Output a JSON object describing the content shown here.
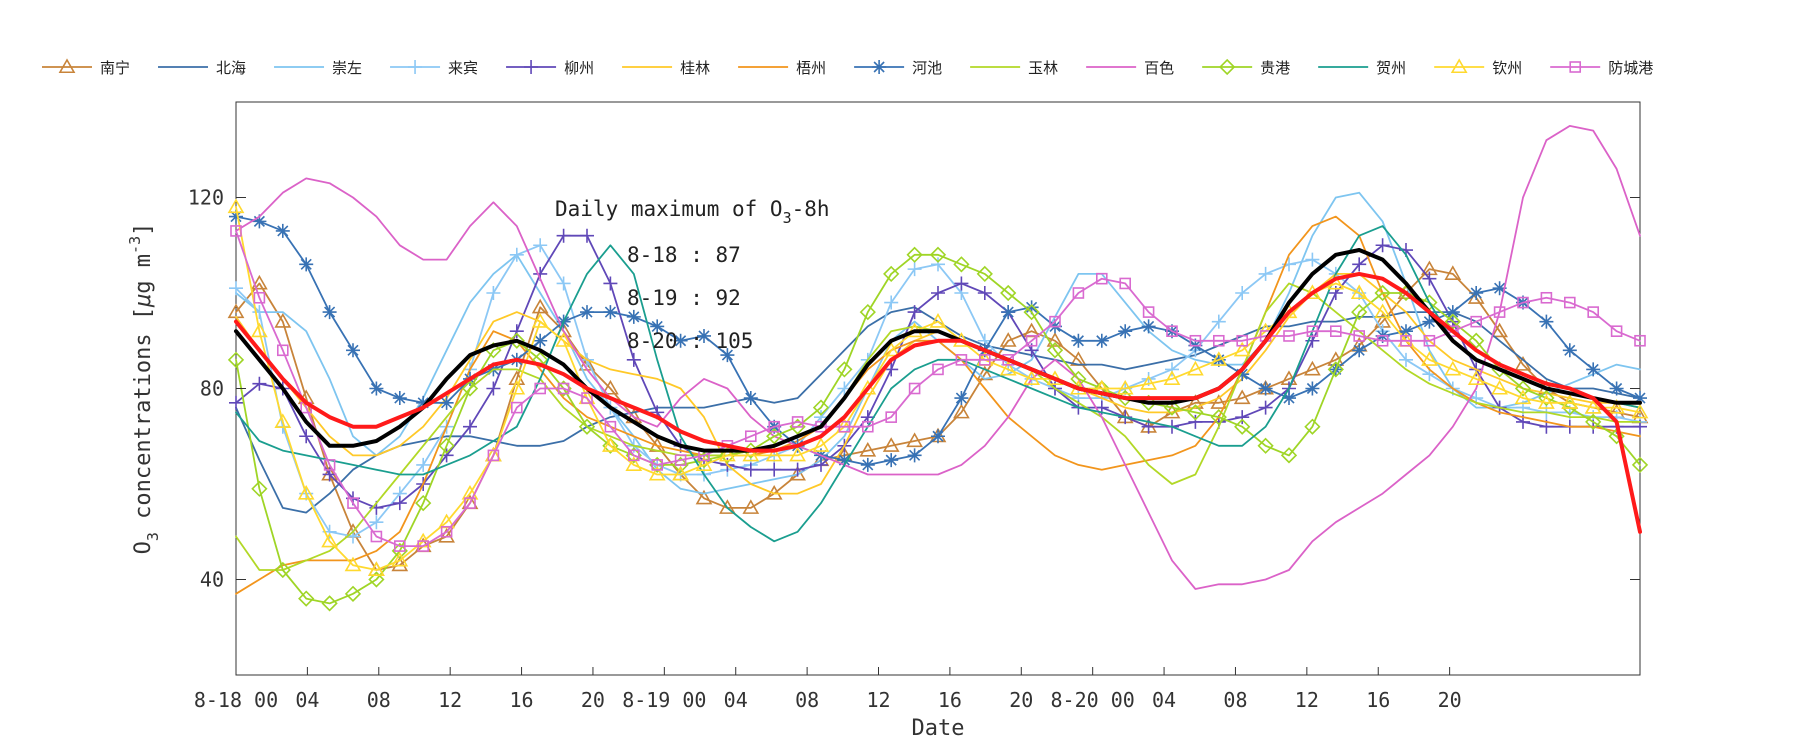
{
  "chart_data": {
    "type": "line",
    "xlabel": "Date",
    "ylabel": "O₃ concentrations [μg m⁻³]",
    "ylabel_parts": {
      "main": "O",
      "sub": "3",
      "middle": " concentrations [",
      "mu": "μ",
      "unit": "g m",
      "sup": "-3",
      "end": "]"
    },
    "ylim": [
      20,
      140
    ],
    "yticks": [
      40,
      80,
      120
    ],
    "xlim": [
      0,
      59
    ],
    "xticks": [
      {
        "x": 0,
        "label": "8-18 00"
      },
      {
        "x": 3,
        "label": "04"
      },
      {
        "x": 6,
        "label": "08"
      },
      {
        "x": 9,
        "label": "12"
      },
      {
        "x": 12,
        "label": "16"
      },
      {
        "x": 15,
        "label": "20"
      },
      {
        "x": 18,
        "label": "8-19 00"
      },
      {
        "x": 21,
        "label": "04"
      },
      {
        "x": 24,
        "label": "08"
      },
      {
        "x": 27,
        "label": "12"
      },
      {
        "x": 30,
        "label": "16"
      },
      {
        "x": 33,
        "label": "20"
      },
      {
        "x": 36,
        "label": "8-20 00"
      },
      {
        "x": 39,
        "label": "04"
      },
      {
        "x": 42,
        "label": "08"
      },
      {
        "x": 45,
        "label": "12"
      },
      {
        "x": 48,
        "label": "16"
      },
      {
        "x": 51,
        "label": "20"
      }
    ],
    "grid": false,
    "legend_position": "top",
    "annotation": {
      "title_main": "Daily maximum of O",
      "title_sub": "3",
      "title_end": "-8h",
      "lines": [
        "8-18 : 87",
        "8-19 : 92",
        "8-20 : 105"
      ]
    },
    "series": [
      {
        "name": "南宁",
        "color": "#c8843a",
        "marker": "triangle",
        "values": [
          96,
          102,
          94,
          78,
          62,
          50,
          42,
          43,
          47,
          49,
          56,
          66,
          82,
          97,
          92,
          85,
          80,
          74,
          68,
          62,
          57,
          55,
          55,
          58,
          62,
          65,
          66,
          67,
          68,
          69,
          70,
          75,
          83,
          90,
          92,
          90,
          86,
          80,
          74,
          72,
          75,
          77,
          77,
          78,
          80,
          82,
          84,
          86,
          89,
          94,
          100,
          105,
          104,
          99,
          92,
          85,
          80,
          77,
          76,
          75,
          74
        ]
      },
      {
        "name": "北海",
        "color": "#3b6fa8",
        "marker": "none",
        "values": [
          76,
          65,
          55,
          54,
          58,
          63,
          66,
          68,
          69,
          70,
          70,
          69,
          68,
          68,
          69,
          72,
          74,
          75,
          76,
          76,
          76,
          77,
          78,
          77,
          78,
          83,
          88,
          93,
          96,
          97,
          94,
          91,
          89,
          88,
          87,
          86,
          85,
          85,
          84,
          85,
          86,
          87,
          89,
          91,
          93,
          93,
          94,
          94,
          95,
          95,
          96,
          96,
          96,
          94,
          90,
          86,
          82,
          80,
          80,
          79,
          78
        ]
      },
      {
        "name": "崇左",
        "color": "#7ec5f0",
        "marker": "none",
        "values": [
          100,
          96,
          96,
          92,
          82,
          70,
          66,
          70,
          78,
          88,
          98,
          104,
          108,
          100,
          92,
          82,
          76,
          70,
          63,
          59,
          58,
          59,
          60,
          61,
          62,
          65,
          70,
          80,
          90,
          94,
          90,
          86,
          82,
          83,
          86,
          95,
          104,
          104,
          98,
          92,
          88,
          86,
          85,
          85,
          90,
          100,
          112,
          120,
          121,
          115,
          102,
          88,
          80,
          76,
          76,
          77,
          79,
          81,
          83,
          85,
          84
        ]
      },
      {
        "name": "来宾",
        "color": "#8cc8f5",
        "marker": "plus",
        "values": [
          101,
          96,
          72,
          58,
          50,
          49,
          52,
          58,
          64,
          72,
          84,
          100,
          108,
          110,
          102,
          86,
          76,
          68,
          64,
          62,
          62,
          63,
          64,
          66,
          68,
          74,
          80,
          86,
          98,
          105,
          106,
          100,
          90,
          85,
          82,
          80,
          78,
          78,
          80,
          82,
          84,
          88,
          94,
          100,
          104,
          106,
          107,
          104,
          100,
          92,
          86,
          83,
          80,
          78,
          76,
          76,
          75,
          75,
          74,
          74,
          73
        ]
      },
      {
        "name": "柳州",
        "color": "#6048b8",
        "marker": "plus",
        "values": [
          77,
          81,
          80,
          70,
          62,
          57,
          55,
          56,
          60,
          66,
          72,
          80,
          92,
          104,
          112,
          112,
          102,
          86,
          75,
          68,
          65,
          64,
          63,
          63,
          63,
          64,
          68,
          74,
          84,
          96,
          100,
          102,
          100,
          96,
          88,
          80,
          76,
          76,
          74,
          72,
          72,
          73,
          73,
          74,
          76,
          80,
          90,
          100,
          106,
          110,
          109,
          103,
          94,
          84,
          76,
          73,
          72,
          72,
          72,
          72,
          72
        ]
      },
      {
        "name": "桂林",
        "color": "#ffc928",
        "marker": "none",
        "values": [
          95,
          88,
          82,
          76,
          70,
          66,
          66,
          68,
          72,
          78,
          86,
          94,
          96,
          94,
          90,
          86,
          84,
          83,
          82,
          80,
          74,
          64,
          60,
          58,
          58,
          60,
          68,
          78,
          86,
          90,
          92,
          90,
          88,
          86,
          84,
          82,
          80,
          78,
          76,
          75,
          75,
          76,
          78,
          82,
          88,
          95,
          100,
          104,
          104,
          100,
          96,
          90,
          86,
          84,
          82,
          80,
          79,
          78,
          77,
          77,
          76
        ]
      },
      {
        "name": "梧州",
        "color": "#f2951c",
        "marker": "none",
        "values": [
          37,
          40,
          43,
          44,
          44,
          44,
          46,
          50,
          60,
          72,
          84,
          92,
          90,
          84,
          78,
          74,
          72,
          70,
          68,
          67,
          66,
          66,
          66,
          67,
          69,
          72,
          78,
          84,
          88,
          90,
          90,
          86,
          80,
          74,
          70,
          66,
          64,
          63,
          64,
          65,
          66,
          68,
          74,
          84,
          96,
          108,
          114,
          116,
          112,
          100,
          90,
          84,
          80,
          77,
          75,
          74,
          73,
          72,
          72,
          71,
          70
        ]
      },
      {
        "name": "河池",
        "color": "#3872b4",
        "marker": "star",
        "values": [
          116,
          115,
          113,
          106,
          96,
          88,
          80,
          78,
          77,
          77,
          82,
          84,
          86,
          90,
          94,
          96,
          96,
          95,
          93,
          90,
          91,
          87,
          78,
          72,
          68,
          66,
          65,
          64,
          65,
          66,
          70,
          78,
          88,
          96,
          97,
          93,
          90,
          90,
          92,
          93,
          92,
          89,
          86,
          83,
          80,
          78,
          80,
          84,
          88,
          91,
          92,
          94,
          96,
          100,
          101,
          98,
          94,
          88,
          84,
          80,
          78
        ]
      },
      {
        "name": "玉林",
        "color": "#b2d826",
        "marker": "none",
        "values": [
          49,
          42,
          42,
          44,
          46,
          50,
          56,
          62,
          68,
          74,
          80,
          84,
          84,
          82,
          76,
          72,
          70,
          68,
          67,
          66,
          66,
          66,
          67,
          68,
          70,
          72,
          78,
          86,
          92,
          93,
          92,
          90,
          88,
          86,
          84,
          80,
          77,
          74,
          70,
          64,
          60,
          62,
          72,
          84,
          96,
          102,
          100,
          96,
          92,
          88,
          84,
          81,
          79,
          77,
          76,
          75,
          75,
          74,
          74,
          73,
          73
        ]
      },
      {
        "name": "百色",
        "color": "#db62c8",
        "marker": "none",
        "values": [
          113,
          116,
          121,
          124,
          123,
          120,
          116,
          110,
          107,
          107,
          114,
          119,
          114,
          103,
          92,
          84,
          78,
          74,
          72,
          78,
          82,
          80,
          74,
          70,
          68,
          66,
          64,
          62,
          62,
          62,
          62,
          64,
          68,
          74,
          82,
          86,
          82,
          74,
          64,
          54,
          44,
          38,
          39,
          39,
          40,
          42,
          48,
          52,
          55,
          58,
          62,
          66,
          72,
          80,
          96,
          120,
          132,
          135,
          134,
          126,
          112
        ]
      },
      {
        "name": "贵港",
        "color": "#9fd526",
        "marker": "diamond",
        "values": [
          86,
          59,
          42,
          36,
          35,
          37,
          40,
          46,
          56,
          68,
          80,
          88,
          90,
          86,
          80,
          72,
          68,
          66,
          64,
          64,
          65,
          66,
          67,
          70,
          72,
          76,
          84,
          96,
          104,
          108,
          108,
          106,
          104,
          100,
          96,
          88,
          82,
          80,
          78,
          77,
          76,
          75,
          74,
          72,
          68,
          66,
          72,
          84,
          96,
          100,
          100,
          98,
          94,
          90,
          84,
          80,
          78,
          76,
          73,
          70,
          64
        ]
      },
      {
        "name": "贺州",
        "color": "#1a9e8f",
        "marker": "none",
        "values": [
          75,
          69,
          67,
          66,
          65,
          64,
          63,
          62,
          62,
          64,
          66,
          69,
          72,
          82,
          94,
          104,
          110,
          104,
          86,
          70,
          62,
          55,
          51,
          48,
          50,
          56,
          64,
          72,
          80,
          84,
          86,
          86,
          84,
          82,
          80,
          78,
          76,
          75,
          74,
          73,
          72,
          70,
          68,
          68,
          72,
          80,
          92,
          104,
          112,
          114,
          108,
          98,
          90,
          86,
          84,
          82,
          80,
          79,
          78,
          77,
          76
        ]
      },
      {
        "name": "钦州",
        "color": "#ffd92e",
        "marker": "triangle",
        "values": [
          118,
          92,
          73,
          58,
          48,
          43,
          42,
          44,
          48,
          52,
          58,
          66,
          80,
          94,
          90,
          78,
          68,
          64,
          62,
          62,
          64,
          66,
          66,
          66,
          66,
          68,
          72,
          80,
          88,
          92,
          94,
          90,
          86,
          84,
          82,
          82,
          80,
          80,
          80,
          81,
          82,
          84,
          86,
          88,
          92,
          96,
          100,
          102,
          100,
          96,
          90,
          86,
          84,
          82,
          80,
          78,
          77,
          77,
          76,
          76,
          75
        ]
      },
      {
        "name": "防城港",
        "color": "#d96ad0",
        "marker": "square",
        "values": [
          113,
          99,
          88,
          76,
          64,
          56,
          49,
          47,
          47,
          50,
          56,
          66,
          76,
          80,
          80,
          78,
          72,
          66,
          64,
          65,
          66,
          68,
          70,
          72,
          73,
          72,
          72,
          72,
          74,
          80,
          84,
          86,
          86,
          86,
          90,
          94,
          100,
          103,
          102,
          96,
          92,
          90,
          90,
          90,
          91,
          91,
          92,
          92,
          91,
          90,
          90,
          90,
          92,
          94,
          96,
          98,
          99,
          98,
          96,
          92,
          90
        ]
      },
      {
        "name": "",
        "color": "#000000",
        "marker": "none",
        "values": [
          92,
          86,
          80,
          73,
          68,
          68,
          69,
          72,
          76,
          82,
          87,
          89,
          90,
          88,
          85,
          80,
          76,
          73,
          70,
          68,
          67,
          67,
          67,
          68,
          70,
          72,
          78,
          85,
          90,
          92,
          92,
          90,
          88,
          86,
          84,
          82,
          80,
          79,
          78,
          77,
          77,
          78,
          80,
          84,
          90,
          98,
          104,
          108,
          109,
          107,
          102,
          96,
          90,
          86,
          84,
          82,
          80,
          79,
          78,
          77,
          77
        ]
      },
      {
        "name": "",
        "color": "#ff1a1a",
        "marker": "none",
        "values": [
          94,
          88,
          82,
          77,
          74,
          72,
          72,
          74,
          76,
          79,
          82,
          85,
          86,
          85,
          83,
          80,
          78,
          76,
          74,
          71,
          69,
          68,
          67,
          67,
          68,
          70,
          74,
          80,
          86,
          89,
          90,
          90,
          88,
          86,
          84,
          82,
          80,
          79,
          78,
          78,
          78,
          78,
          80,
          84,
          90,
          96,
          100,
          103,
          104,
          103,
          100,
          96,
          92,
          88,
          85,
          83,
          81,
          80,
          78,
          73,
          50
        ]
      }
    ]
  }
}
